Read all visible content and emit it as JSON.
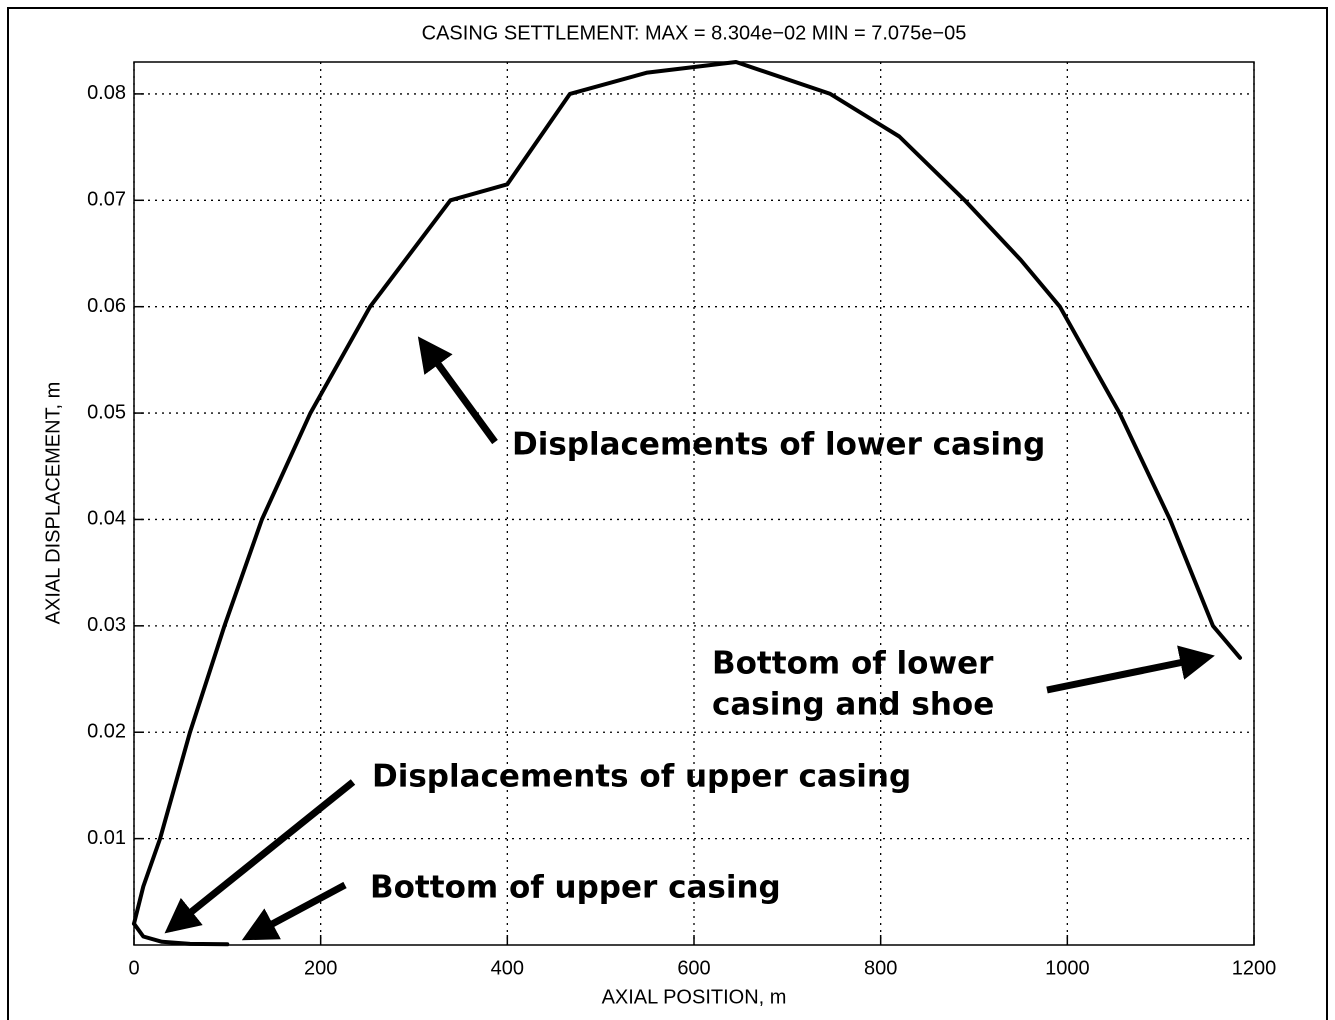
{
  "chart_data": {
    "type": "line",
    "title": "CASING SETTLEMENT: MAX = 8.304e−02 MIN = 7.075e−05",
    "x_label": "AXIAL POSITION, m",
    "y_label": "AXIAL DISPLACEMENT, m",
    "xlim": [
      0,
      1200
    ],
    "xticks": [
      0,
      200,
      400,
      600,
      800,
      1000,
      1200
    ],
    "ylim": [
      0,
      0.083
    ],
    "yticks": [
      0.01,
      0.02,
      0.03,
      0.04,
      0.05,
      0.06,
      0.07,
      0.08
    ],
    "grid": true,
    "series": [
      {
        "color": "#000000",
        "x": [
          0,
          10,
          30,
          60,
          100
        ],
        "values": [
          0.002,
          0.0008,
          0.0003,
          0.0001,
          7e-05
        ]
      },
      {
        "color": "#000000",
        "x": [
          0,
          10,
          28,
          60,
          97,
          137,
          189,
          253,
          339,
          400,
          467,
          550,
          645,
          746,
          820,
          890,
          950,
          992,
          1056,
          1110,
          1156,
          1185
        ],
        "values": [
          0.002,
          0.0055,
          0.01,
          0.02,
          0.03,
          0.04,
          0.05,
          0.06,
          0.07,
          0.0715,
          0.08,
          0.082,
          0.083,
          0.08,
          0.076,
          0.07,
          0.0644,
          0.06,
          0.05,
          0.04,
          0.03,
          0.027
        ]
      }
    ],
    "annotations": [
      "Displacements of lower casing",
      "Bottom of lower",
      "casing and shoe",
      "Displacements of upper casing",
      "Bottom of upper casing"
    ]
  }
}
